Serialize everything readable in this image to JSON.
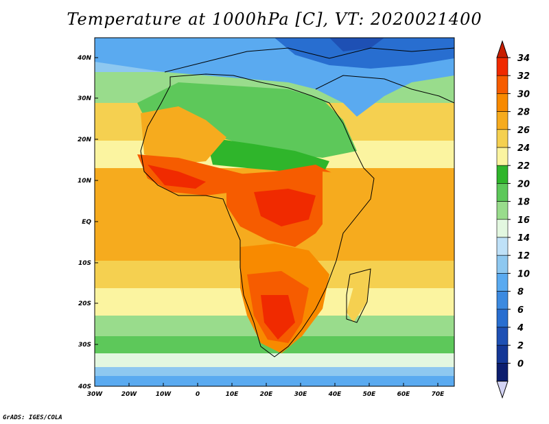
{
  "title": "Temperature at 1000hPa [C], VT: 2020021400",
  "credit": "GrADS: IGES/COLA",
  "map": {
    "lat_labels": [
      "40N",
      "30N",
      "20N",
      "10N",
      "EQ",
      "10S",
      "20S",
      "30S",
      "40S"
    ],
    "lon_labels": [
      "30W",
      "20W",
      "10W",
      "0",
      "10E",
      "20E",
      "30E",
      "40E",
      "50E",
      "60E",
      "70E"
    ]
  },
  "colorbar": {
    "labels": [
      "34",
      "32",
      "30",
      "28",
      "26",
      "24",
      "22",
      "20",
      "18",
      "16",
      "14",
      "12",
      "10",
      "8",
      "6",
      "4",
      "2",
      "0"
    ],
    "colors_top_to_bottom": [
      "#f02a00",
      "#f65c00",
      "#f88a00",
      "#f6ab1e",
      "#f5d050",
      "#fbf4a0",
      "#2fb52b",
      "#5dc85a",
      "#99dc8c",
      "#e3f7e0",
      "#bfe1f8",
      "#8ec8f0",
      "#5aaaf0",
      "#3c8ae0",
      "#286ed0",
      "#1e50b4",
      "#143796",
      "#0c1e6e"
    ],
    "upper_arrow_color": "#c81e00",
    "lower_arrow_color": "#d4d4f4"
  }
}
